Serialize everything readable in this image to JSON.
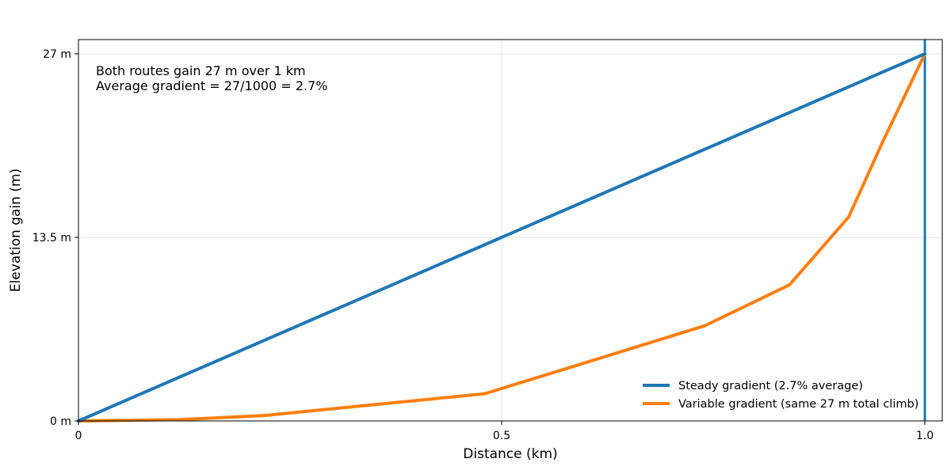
{
  "chart_data": {
    "type": "line",
    "title": "",
    "xlabel": "Distance (km)",
    "ylabel": "Elevation gain (m)",
    "xlim": [
      0,
      1.02
    ],
    "ylim": [
      0,
      27
    ],
    "x_ticks": [
      {
        "value": 0,
        "label": "0"
      },
      {
        "value": 0.5,
        "label": "0.5"
      },
      {
        "value": 1.0,
        "label": "1.0"
      }
    ],
    "y_ticks": [
      {
        "value": 0,
        "label": "0 m"
      },
      {
        "value": 13.5,
        "label": "13.5 m"
      },
      {
        "value": 27,
        "label": "27 m"
      }
    ],
    "grid": true,
    "legend_position": "lower-right",
    "annotation": {
      "line1": "Both routes gain 27 m over 1 km",
      "line2": "Average gradient = 27/1000 = 2.7%",
      "position": "top-left"
    },
    "vline": {
      "x": 1.0,
      "color": "#1f77b4"
    },
    "series": [
      {
        "name": "Steady gradient (2.7% average)",
        "color": "#1f77b4",
        "points": [
          [
            0,
            0
          ],
          [
            1.0,
            27
          ]
        ]
      },
      {
        "name": "Variable gradient (same 27 m total climb)",
        "color": "#ff7f0e",
        "points": [
          [
            0,
            0
          ],
          [
            0.12,
            0.1
          ],
          [
            0.22,
            0.4
          ],
          [
            0.48,
            2.0
          ],
          [
            0.61,
            4.5
          ],
          [
            0.74,
            7.0
          ],
          [
            0.84,
            10.0
          ],
          [
            0.91,
            15.0
          ],
          [
            0.95,
            20.5
          ],
          [
            1.0,
            27
          ]
        ]
      }
    ]
  }
}
